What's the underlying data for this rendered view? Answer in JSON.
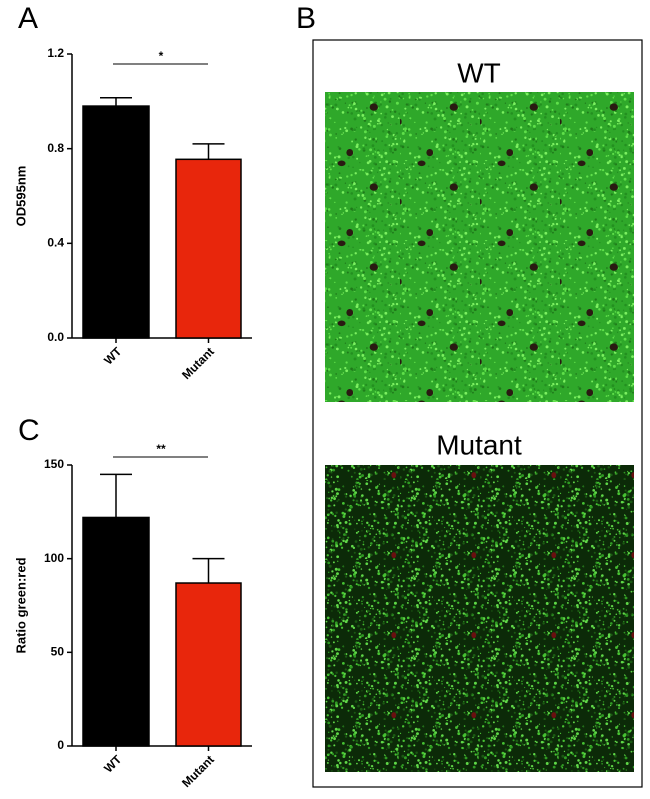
{
  "chart_data": [
    {
      "type": "bar",
      "panel": "A",
      "ylabel": "OD595nm",
      "categories": [
        "WT",
        "Mutant"
      ],
      "colors": [
        "#000000",
        "#e8260c"
      ],
      "values": [
        0.98,
        0.755
      ],
      "errors": [
        0.035,
        0.065
      ],
      "ylim": [
        0,
        1.2
      ],
      "yticks": [
        {
          "value": 0,
          "label": "0.0"
        },
        0.4,
        0.8,
        1.2
      ],
      "significance": "*"
    },
    {
      "type": "bar",
      "panel": "C",
      "ylabel": "Ratio green:red",
      "categories": [
        "WT",
        "Mutant"
      ],
      "colors": [
        "#000000",
        "#e8260c"
      ],
      "values": [
        122,
        87
      ],
      "errors": [
        23,
        13
      ],
      "ylim": [
        0,
        150
      ],
      "yticks": [
        0,
        50,
        100,
        150
      ],
      "significance": "**"
    }
  ],
  "panel_b": {
    "label": "B",
    "images": [
      {
        "title": "WT"
      },
      {
        "title": "Mutant"
      }
    ]
  }
}
